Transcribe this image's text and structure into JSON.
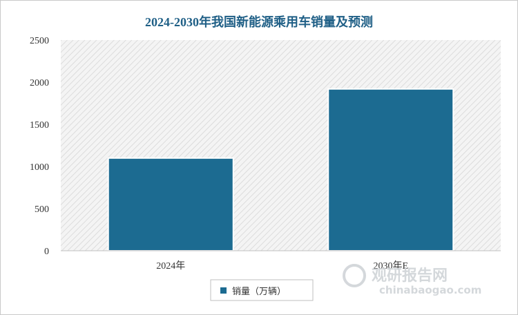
{
  "chart_data": {
    "type": "bar",
    "title": "2024-2030年我国新能源乘用车销量及预测",
    "categories": [
      "2024年",
      "2030年E"
    ],
    "series": [
      {
        "name": "销量（万辆）",
        "values": [
          1100,
          1920
        ],
        "color": "#1c6b91"
      }
    ],
    "ylim": [
      0,
      2500
    ],
    "yticks": [
      0,
      500,
      1000,
      1500,
      2000,
      2500
    ],
    "grid": false,
    "legend_position": "bottom"
  },
  "watermark": {
    "name": "观研报告网",
    "url": "chinabaogao.com"
  }
}
